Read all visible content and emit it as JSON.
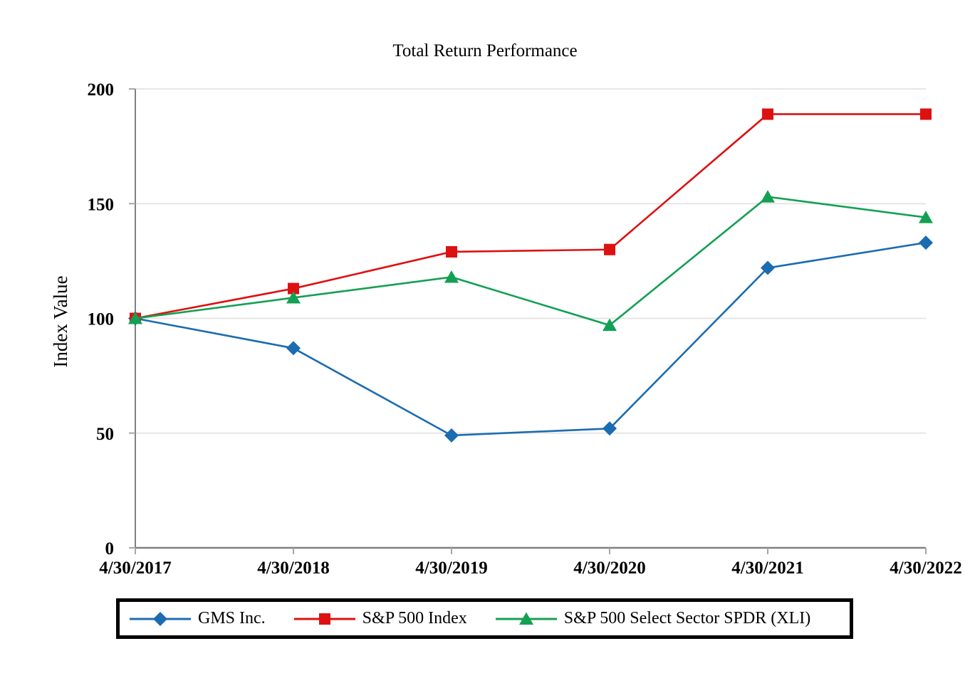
{
  "chart_data": {
    "type": "line",
    "title": "Total Return Performance",
    "xlabel": "",
    "ylabel": "Index Value",
    "categories": [
      "4/30/2017",
      "4/30/2018",
      "4/30/2019",
      "4/30/2020",
      "4/30/2021",
      "4/30/2022"
    ],
    "series": [
      {
        "name": "GMS Inc.",
        "marker": "diamond",
        "color": "#1b6cb1",
        "values": [
          100,
          87,
          49,
          52,
          122,
          133
        ]
      },
      {
        "name": "S&P 500 Index",
        "marker": "square",
        "color": "#dd1111",
        "values": [
          100,
          113,
          129,
          130,
          189,
          189
        ]
      },
      {
        "name": "S&P 500 Select Sector SPDR (XLI)",
        "marker": "triangle",
        "color": "#13a053",
        "values": [
          100,
          109,
          118,
          97,
          153,
          144
        ]
      }
    ],
    "yticks": [
      0,
      50,
      100,
      150,
      200
    ],
    "ylim": [
      0,
      200
    ],
    "grid": "horizontal",
    "legend_position": "bottom",
    "colors": {
      "axis": "#808080",
      "tick": "#a6a6a6",
      "gridline": "#e6e6e6",
      "text": "#000000"
    }
  }
}
